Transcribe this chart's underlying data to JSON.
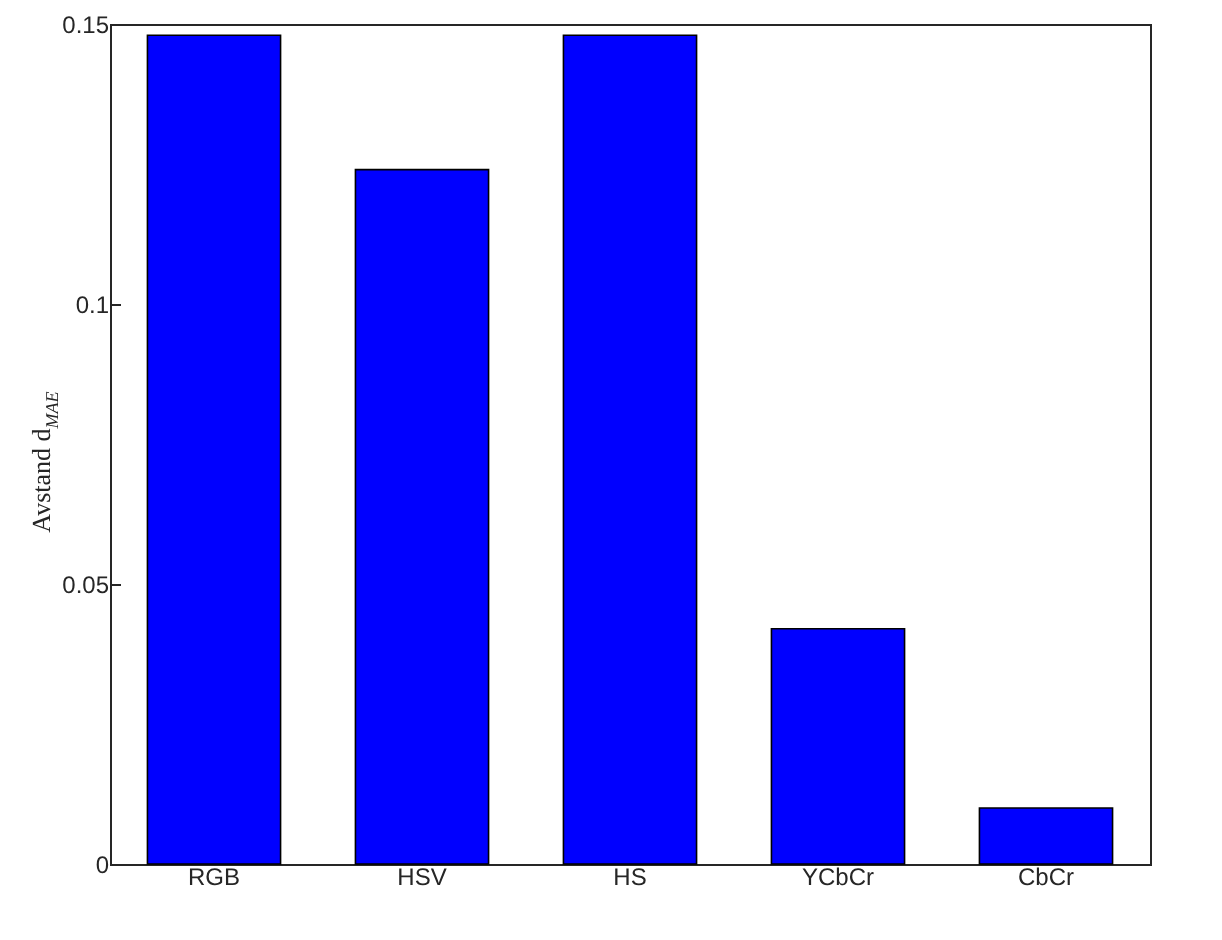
{
  "chart_data": {
    "type": "bar",
    "ylabel": "Avstand d$_{MAE}$",
    "categories": [
      "RGB",
      "HSV",
      "HS",
      "YCbCr",
      "CbCr"
    ],
    "values": [
      0.148,
      0.124,
      0.148,
      0.042,
      0.01
    ],
    "color": "#0000ff",
    "ylim": [
      0,
      0.15
    ],
    "yticks": [
      0,
      0.05,
      0.1,
      0.15
    ],
    "grid": false
  }
}
